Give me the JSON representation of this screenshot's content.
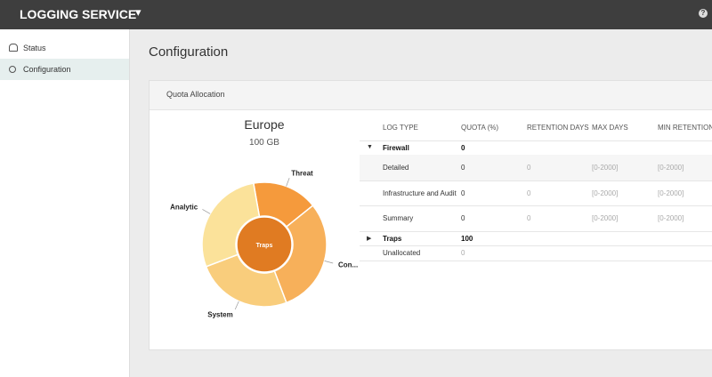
{
  "header": {
    "title": "LOGGING SERVICE",
    "help": "?"
  },
  "sidebar": {
    "items": [
      "Status",
      "Configuration"
    ]
  },
  "page": {
    "title": "Configuration"
  },
  "panel": {
    "title": "Quota Allocation",
    "chart": {
      "title": "Europe",
      "subtitle": "100 GB",
      "center_label": "Traps",
      "center_color": "#e07b22",
      "segments": [
        {
          "label": "Threat",
          "value": 17,
          "color": "#f59a3c"
        },
        {
          "label": "Con...",
          "value": 30,
          "color": "#f7b05a"
        },
        {
          "label": "System",
          "value": 25,
          "color": "#f9cd7c"
        },
        {
          "label": "Analytic",
          "value": 28,
          "color": "#fbe29a"
        }
      ]
    },
    "table": {
      "columns": [
        "LOG TYPE",
        "QUOTA (%)",
        "RETENTION DAYS",
        "MAX DAYS",
        "MIN RETENTION V"
      ],
      "rows": [
        [
          "Firewall",
          "0"
        ],
        [
          "Detailed",
          "0",
          "0",
          "[0-2000]",
          "[0-2000]"
        ],
        [
          "Infrastructure and Audit",
          "0",
          "0",
          "[0-2000]",
          "[0-2000]"
        ],
        [
          "Summary",
          "0",
          "0",
          "[0-2000]",
          "[0-2000]"
        ],
        [
          "Traps",
          "100"
        ],
        [
          "Unallocated",
          "0"
        ]
      ]
    }
  }
}
